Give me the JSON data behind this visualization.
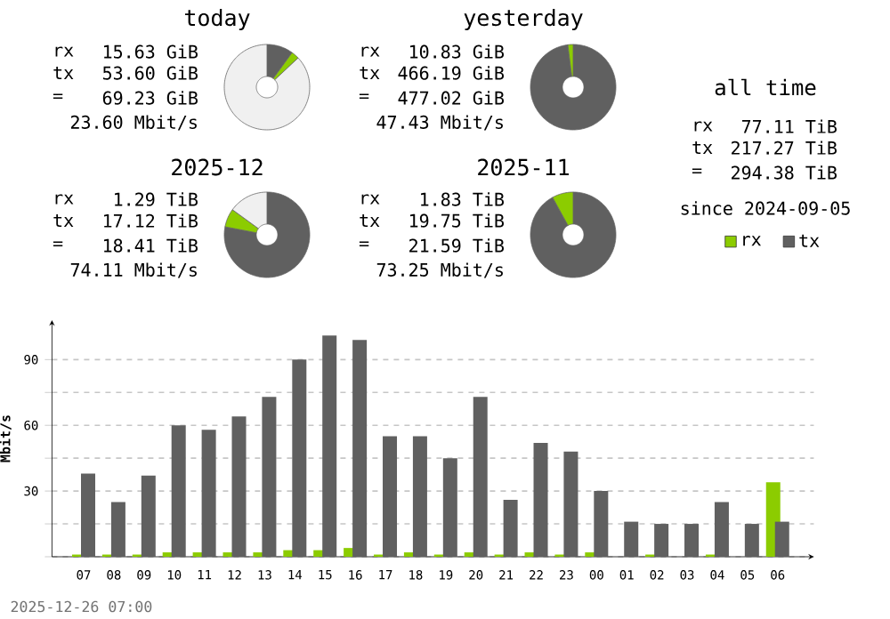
{
  "chart_data": [
    {
      "type": "donut",
      "title": "today",
      "categories": [
        null,
        null,
        null
      ],
      "values": [
        10,
        3,
        87
      ],
      "colors": [
        "#606060",
        "#8ccc00",
        "#f0f0f0"
      ],
      "annotations": [
        "rx",
        "15.63 GiB",
        "tx",
        "53.60 GiB",
        "=",
        "69.23 GiB",
        "23.60 Mbit/s"
      ]
    },
    {
      "type": "donut",
      "title": "yesterday",
      "categories": [
        null,
        null
      ],
      "values": [
        98,
        2
      ],
      "colors": [
        "#606060",
        "#8ccc00"
      ],
      "annotations": [
        "rx",
        "10.83 GiB",
        "tx",
        "466.19 GiB",
        "=",
        "477.02 GiB",
        "47.43 Mbit/s"
      ]
    },
    {
      "type": "other",
      "title": "all time",
      "annotations": [
        "rx",
        "77.11 TiB",
        "tx",
        "217.27 TiB",
        "=",
        "294.38 TiB",
        "since 2024-09-05"
      ]
    },
    {
      "type": "donut",
      "title": "2025-12",
      "categories": [
        null,
        null,
        null
      ],
      "values": [
        78,
        7,
        15
      ],
      "colors": [
        "#606060",
        "#8ccc00",
        "#f0f0f0"
      ],
      "annotations": [
        "rx",
        "1.29 TiB",
        "tx",
        "17.12 TiB",
        "=",
        "18.41 TiB",
        "74.11 Mbit/s"
      ]
    },
    {
      "type": "donut",
      "title": "2025-11",
      "categories": [
        null,
        null
      ],
      "values": [
        92,
        8
      ],
      "colors": [
        "#606060",
        "#8ccc00"
      ],
      "annotations": [
        "rx",
        "1.83 TiB",
        "tx",
        "19.75 TiB",
        "=",
        "21.59 TiB",
        "73.25 Mbit/s"
      ]
    },
    {
      "type": "bar",
      "ylabel": "Mbit/s",
      "categories": [
        "07",
        "08",
        "09",
        "10",
        "11",
        "12",
        "13",
        "14",
        "15",
        "16",
        "17",
        "18",
        "19",
        "20",
        "21",
        "22",
        "23",
        "00",
        "01",
        "02",
        "03",
        "04",
        "05",
        "06"
      ],
      "series": [
        {
          "name": "rx",
          "color": "#8ccc00",
          "values": [
            1,
            1,
            1,
            2,
            2,
            2,
            2,
            3,
            3,
            4,
            1,
            2,
            1,
            2,
            1,
            2,
            1,
            2,
            0,
            1,
            0,
            1,
            0,
            34
          ]
        },
        {
          "name": "tx",
          "color": "#606060",
          "values": [
            38,
            25,
            37,
            60,
            58,
            64,
            73,
            90,
            101,
            99,
            55,
            55,
            45,
            73,
            26,
            52,
            48,
            30,
            16,
            15,
            15,
            25,
            15,
            16
          ]
        }
      ],
      "ylim": [
        0,
        108
      ],
      "yticks": [
        {
          "value": 0,
          "label": null
        },
        {
          "value": 15,
          "label": null
        },
        30,
        {
          "value": 45,
          "label": null
        },
        60,
        {
          "value": 75,
          "label": null
        },
        90
      ],
      "grid": "y",
      "legend": "top right",
      "annotations": [
        "2025-12-26 07:00"
      ]
    }
  ]
}
